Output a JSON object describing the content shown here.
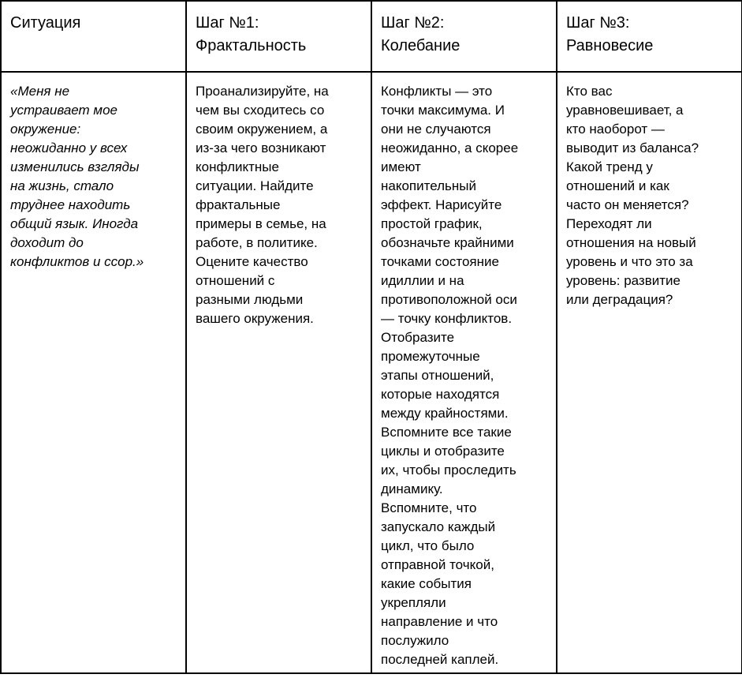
{
  "table": {
    "headers": [
      "Ситуация",
      "Шаг №1:\nФрактальность",
      "Шаг №2:\nКолебание",
      "Шаг №3:\nРавновесие"
    ],
    "cells": [
      "«Меня не\nустраивает мое\nокружение:\nнеожиданно у всех\nизменились взгляды\nна жизнь, стало\nтруднее находить\nобщий язык. Иногда\nдоходит до\nконфликтов и ссор.»",
      "Проанализируйте, на\nчем вы сходитесь со\nсвоим окружением, а\nиз-за чего возникают\nконфликтные\nситуации. Найдите\nфрактальные\nпримеры в семье, на\nработе, в политике.\nОцените качество\nотношений с\nразными людьми\nвашего окружения.",
      "Конфликты — это\nточки максимума. И\nони не случаются\nнеожиданно, а скорее\nимеют\nнакопительный\nэффект. Нарисуйте\nпростой график,\nобозначьте крайними\nточками состояние\nидиллии и на\nпротивоположной оси\n— точку конфликтов.\nОтобразите\nпромежуточные\nэтапы отношений,\nкоторые находятся\nмежду крайностями.\nВспомните все такие\nциклы и отобразите\nих, чтобы проследить\nдинамику.\nВспомните, что\nзапускало каждый\nцикл, что было\nотправной точкой,\nкакие события\nукрепляли\nнаправление и что\nпослужило\nпоследней каплей.",
      "Кто вас\nуравновешивает, а\nкто наоборот —\nвыводит из баланса?\nКакой тренд у\nотношений и как\nчасто он меняется?\nПереходят ли\nотношения на новый\nуровень и что это за\nуровень: развитие\nили деградация?"
    ]
  }
}
